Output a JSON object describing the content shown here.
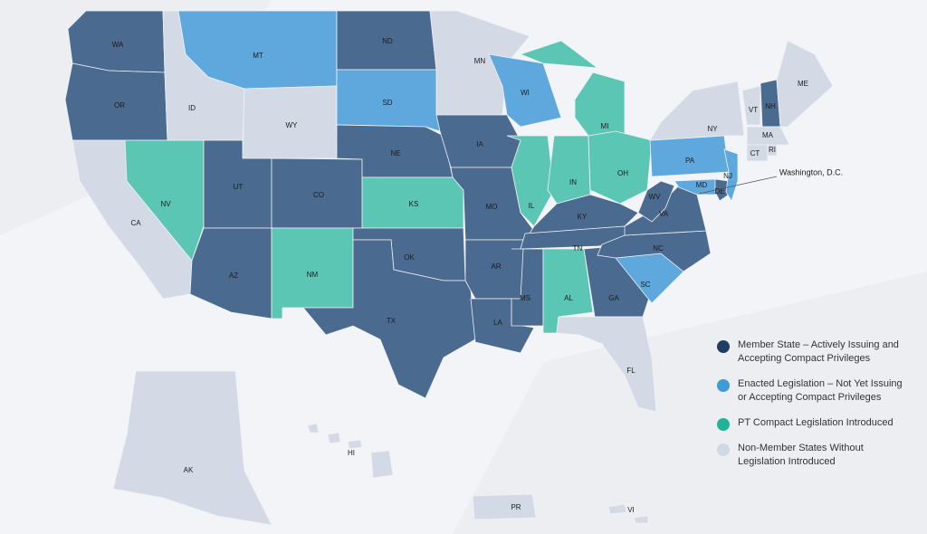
{
  "map": {
    "annotation": "Washington, D.C.",
    "legend": [
      {
        "label": "Member State – Actively Issuing and Accepting Compact Privileges",
        "color": "#1f3d63",
        "fill": "#4b6a8f"
      },
      {
        "label": "Enacted Legislation – Not Yet Issuing or Accepting Compact Privileges",
        "color": "#3d9bd8",
        "fill": "#5ea8de"
      },
      {
        "label": "PT Compact Legislation Introduced",
        "color": "#1fb39a",
        "fill": "#5cc6b4"
      },
      {
        "label": "Non-Member States Without Legislation Introduced",
        "color": "#d0d8e4",
        "fill": "#d3dae6"
      }
    ],
    "states": [
      {
        "label": "WA",
        "category": 0
      },
      {
        "label": "OR",
        "category": 0
      },
      {
        "label": "CA",
        "category": 3
      },
      {
        "label": "NV",
        "category": 2
      },
      {
        "label": "ID",
        "category": 3
      },
      {
        "label": "MT",
        "category": 1
      },
      {
        "label": "WY",
        "category": 3
      },
      {
        "label": "UT",
        "category": 0
      },
      {
        "label": "AZ",
        "category": 0
      },
      {
        "label": "CO",
        "category": 0
      },
      {
        "label": "NM",
        "category": 2
      },
      {
        "label": "ND",
        "category": 0
      },
      {
        "label": "SD",
        "category": 1
      },
      {
        "label": "NE",
        "category": 0
      },
      {
        "label": "KS",
        "category": 2
      },
      {
        "label": "OK",
        "category": 0
      },
      {
        "label": "TX",
        "category": 0
      },
      {
        "label": "MN",
        "category": 3
      },
      {
        "label": "IA",
        "category": 0
      },
      {
        "label": "MO",
        "category": 0
      },
      {
        "label": "AR",
        "category": 0
      },
      {
        "label": "LA",
        "category": 0
      },
      {
        "label": "WI",
        "category": 1
      },
      {
        "label": "IL",
        "category": 2
      },
      {
        "label": "MS",
        "category": 0
      },
      {
        "label": "AL",
        "category": 2
      },
      {
        "label": "MI",
        "category": 2
      },
      {
        "label": "IN",
        "category": 2
      },
      {
        "label": "OH",
        "category": 2
      },
      {
        "label": "KY",
        "category": 0
      },
      {
        "label": "TN",
        "category": 0
      },
      {
        "label": "GA",
        "category": 0
      },
      {
        "label": "FL",
        "category": 3
      },
      {
        "label": "SC",
        "category": 1
      },
      {
        "label": "NC",
        "category": 0
      },
      {
        "label": "VA",
        "category": 0
      },
      {
        "label": "WV",
        "category": 0
      },
      {
        "label": "PA",
        "category": 1
      },
      {
        "label": "NY",
        "category": 3
      },
      {
        "label": "MD",
        "category": 1
      },
      {
        "label": "DE",
        "category": 0
      },
      {
        "label": "NJ",
        "category": 1
      },
      {
        "label": "VT",
        "category": 3
      },
      {
        "label": "NH",
        "category": 0
      },
      {
        "label": "ME",
        "category": 3
      },
      {
        "label": "MA",
        "category": 3
      },
      {
        "label": "CT",
        "category": 3
      },
      {
        "label": "RI",
        "category": 3
      },
      {
        "label": "AK",
        "category": 3
      },
      {
        "label": "HI",
        "category": 3
      },
      {
        "label": "PR",
        "category": 3
      },
      {
        "label": "VI",
        "category": 3
      }
    ]
  }
}
